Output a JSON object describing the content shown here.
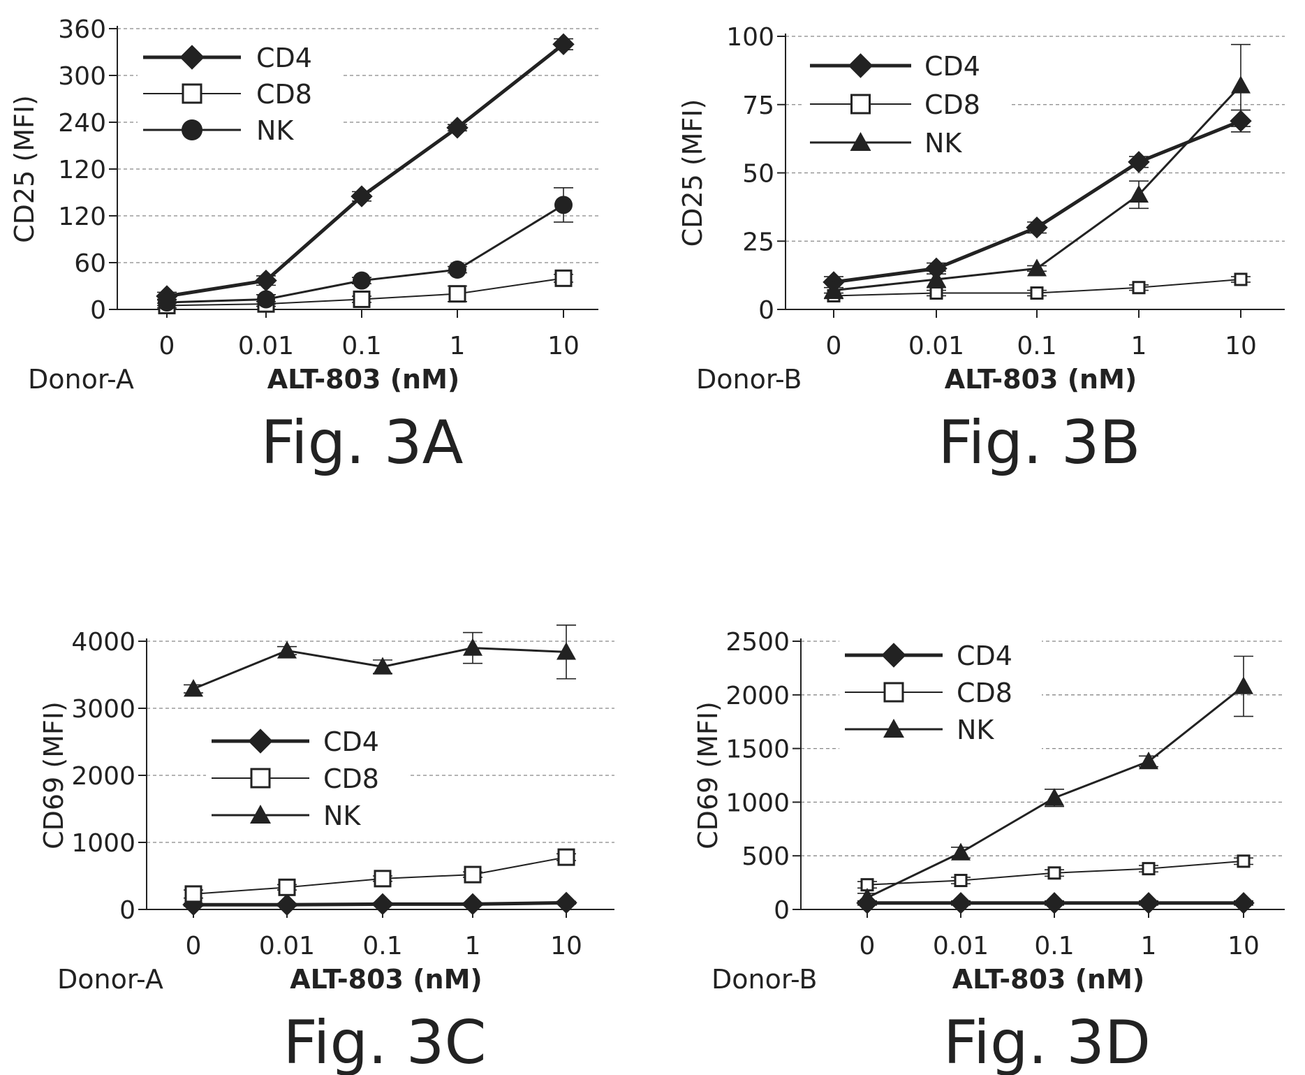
{
  "chart_data": [
    {
      "type": "line",
      "figure_label": "Fig. 3A",
      "donor": "Donor-A",
      "xlabel": "ALT-803 (nM)",
      "ylabel": "CD25 (MFI)",
      "categories": [
        "0",
        "0.01",
        "0.1",
        "1",
        "10"
      ],
      "yticks": [
        "0",
        "60",
        "120",
        "120",
        "240",
        "300",
        "360"
      ],
      "ylim": [
        0,
        360
      ],
      "grid": "dashed horizontal",
      "legend_position": "top-left",
      "series": [
        {
          "name": "CD4",
          "marker": "diamond-filled",
          "values": [
            17,
            37,
            145,
            233,
            340
          ],
          "errors": [
            5,
            6,
            6,
            4,
            7
          ]
        },
        {
          "name": "CD8",
          "marker": "square-open",
          "values": [
            5,
            7,
            13,
            20,
            40
          ],
          "errors": [
            3,
            3,
            4,
            10,
            5
          ]
        },
        {
          "name": "NK",
          "marker": "circle-filled",
          "values": [
            9,
            13,
            37,
            51,
            134
          ],
          "errors": [
            4,
            6,
            4,
            4,
            22
          ]
        }
      ]
    },
    {
      "type": "line",
      "figure_label": "Fig. 3B",
      "donor": "Donor-B",
      "xlabel": "ALT-803 (nM)",
      "ylabel": "CD25 (MFI)",
      "categories": [
        "0",
        "0.01",
        "0.1",
        "1",
        "10"
      ],
      "yticks": [
        "0",
        "25",
        "50",
        "75",
        "100"
      ],
      "ylim": [
        0,
        100
      ],
      "grid": "dashed horizontal",
      "legend_position": "top-left",
      "series": [
        {
          "name": "CD4",
          "marker": "diamond-filled",
          "values": [
            10,
            15,
            30,
            54,
            69
          ],
          "errors": [
            2,
            2,
            2,
            2,
            4
          ]
        },
        {
          "name": "CD8",
          "marker": "square-open",
          "values": [
            5,
            6,
            6,
            8,
            11
          ],
          "errors": [
            1,
            1,
            1,
            1,
            1
          ]
        },
        {
          "name": "NK",
          "marker": "triangle-filled",
          "values": [
            7,
            11,
            15,
            42,
            82
          ],
          "errors": [
            3,
            3,
            1,
            5,
            15
          ]
        }
      ]
    },
    {
      "type": "line",
      "figure_label": "Fig. 3C",
      "donor": "Donor-A",
      "xlabel": "ALT-803 (nM)",
      "ylabel": "CD69 (MFI)",
      "categories": [
        "0",
        "0.01",
        "0.1",
        "1",
        "10"
      ],
      "yticks": [
        "0",
        "1000",
        "2000",
        "3000",
        "4000"
      ],
      "ylim": [
        0,
        4000
      ],
      "grid": "dashed horizontal",
      "legend_position": "center",
      "series": [
        {
          "name": "CD4",
          "marker": "diamond-filled",
          "values": [
            70,
            70,
            80,
            80,
            100
          ],
          "errors": [
            20,
            20,
            20,
            20,
            20
          ]
        },
        {
          "name": "CD8",
          "marker": "square-open",
          "values": [
            230,
            330,
            460,
            520,
            780
          ],
          "errors": [
            60,
            40,
            40,
            40,
            50
          ]
        },
        {
          "name": "NK",
          "marker": "triangle-filled",
          "values": [
            3290,
            3860,
            3620,
            3900,
            3840
          ],
          "errors": [
            60,
            60,
            100,
            230,
            400
          ]
        }
      ]
    },
    {
      "type": "line",
      "figure_label": "Fig. 3D",
      "donor": "Donor-B",
      "xlabel": "ALT-803 (nM)",
      "ylabel": "CD69 (MFI)",
      "categories": [
        "0",
        "0.01",
        "0.1",
        "1",
        "10"
      ],
      "yticks": [
        "0",
        "500",
        "1000",
        "1500",
        "2000",
        "2500"
      ],
      "ylim": [
        0,
        2500
      ],
      "grid": "dashed horizontal",
      "legend_position": "top-left",
      "series": [
        {
          "name": "CD4",
          "marker": "diamond-filled",
          "values": [
            60,
            60,
            60,
            60,
            60
          ],
          "errors": [
            20,
            20,
            20,
            20,
            20
          ]
        },
        {
          "name": "CD8",
          "marker": "square-open",
          "values": [
            230,
            270,
            340,
            380,
            450
          ],
          "errors": [
            30,
            30,
            30,
            30,
            30
          ]
        },
        {
          "name": "NK",
          "marker": "triangle-filled",
          "values": [
            110,
            530,
            1040,
            1380,
            2080
          ],
          "errors": [
            40,
            50,
            80,
            50,
            280
          ]
        }
      ]
    }
  ]
}
